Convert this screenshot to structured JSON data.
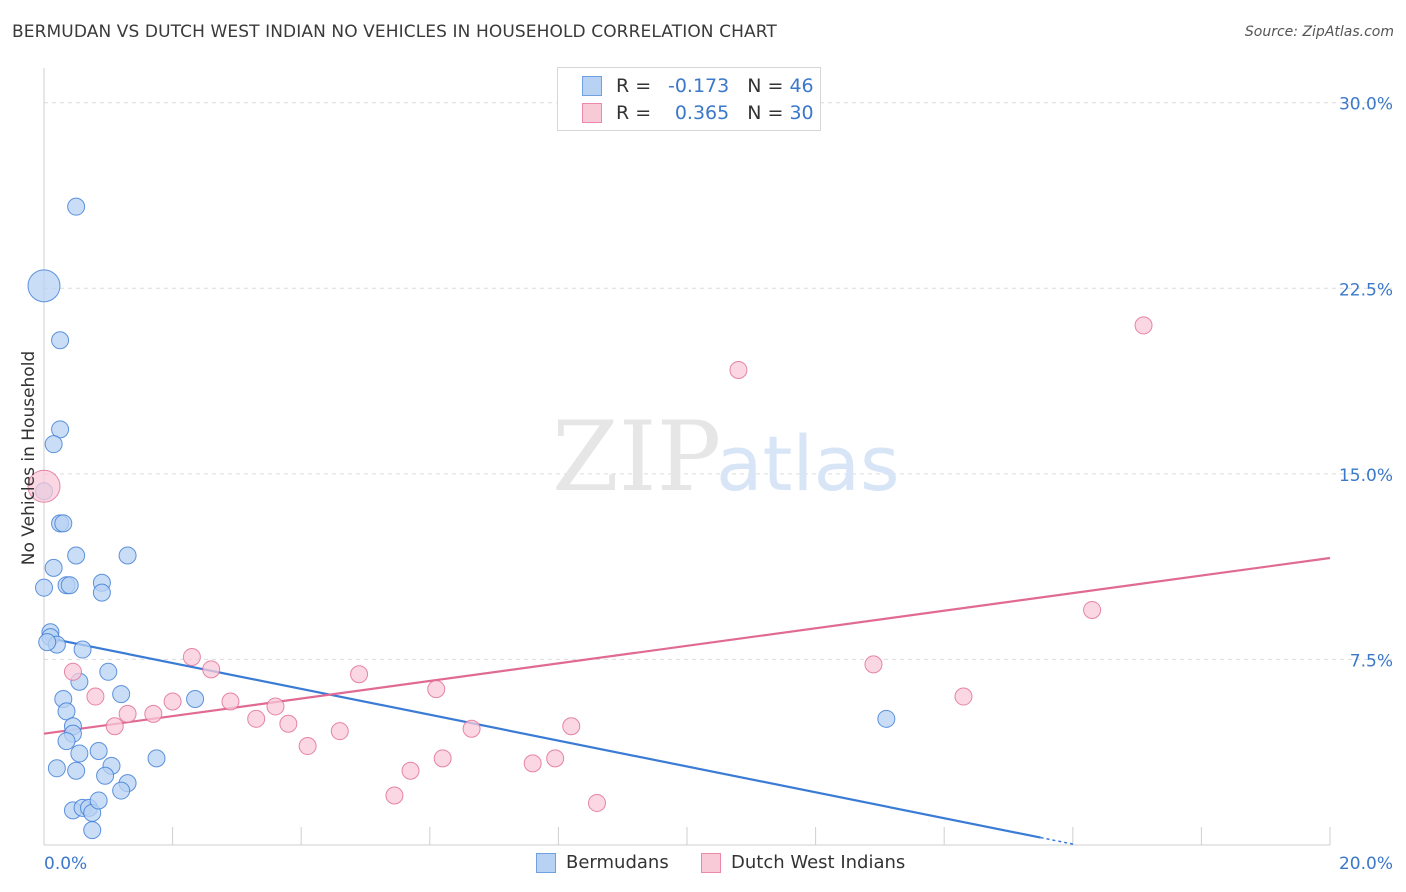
{
  "title": "BERMUDAN VS DUTCH WEST INDIAN NO VEHICLES IN HOUSEHOLD CORRELATION CHART",
  "source": "Source: ZipAtlas.com",
  "watermark": {
    "zip": "ZIP",
    "atlas": "atlas"
  },
  "legend": {
    "r_label": "R =",
    "n_label": "N =",
    "rows": [
      {
        "r": "-0.173",
        "n": "46",
        "color": "#6fa0e0",
        "fill": "#b8d2f3"
      },
      {
        "r": "0.365",
        "n": "30",
        "color": "#eb8aa8",
        "fill": "#f8cad8"
      }
    ]
  },
  "bottom_legend": [
    {
      "label": "Bermudans",
      "color": "#6fa0e0",
      "fill": "#b8d2f3"
    },
    {
      "label": "Dutch West Indians",
      "color": "#eb8aa8",
      "fill": "#f8cad8"
    }
  ],
  "chart_data": {
    "type": "scatter",
    "title": "BERMUDAN VS DUTCH WEST INDIAN NO VEHICLES IN HOUSEHOLD CORRELATION CHART",
    "xlabel": "",
    "ylabel": "No Vehicles in Household",
    "xlim": [
      0,
      20
    ],
    "ylim": [
      0,
      31
    ],
    "x_tick_labels": [
      "0.0%",
      "20.0%"
    ],
    "y_ticks": [
      7.5,
      15.0,
      22.5,
      30.0
    ],
    "y_tick_labels": [
      "7.5%",
      "15.0%",
      "22.5%",
      "30.0%"
    ],
    "grid": "horizontal dashed",
    "legend_position": "top-center",
    "series": [
      {
        "name": "Bermudans",
        "color": "#3a7bd5",
        "fill": "#b8d2f3",
        "trend": {
          "x": [
            0.0,
            15.5
          ],
          "y": [
            8.4,
            0.3
          ]
        },
        "points": [
          [
            0.5,
            25.8
          ],
          [
            0.0,
            22.6
          ],
          [
            0.25,
            20.4
          ],
          [
            0.25,
            16.8
          ],
          [
            0.15,
            16.2
          ],
          [
            0.0,
            14.3
          ],
          [
            0.25,
            13.0
          ],
          [
            0.3,
            13.0
          ],
          [
            0.15,
            11.2
          ],
          [
            0.5,
            11.7
          ],
          [
            1.3,
            11.7
          ],
          [
            0.0,
            10.4
          ],
          [
            0.35,
            10.5
          ],
          [
            0.4,
            10.5
          ],
          [
            0.9,
            10.6
          ],
          [
            0.9,
            10.2
          ],
          [
            0.1,
            8.6
          ],
          [
            0.1,
            8.4
          ],
          [
            0.2,
            8.1
          ],
          [
            0.6,
            7.9
          ],
          [
            1.0,
            7.0
          ],
          [
            0.55,
            6.6
          ],
          [
            1.2,
            6.1
          ],
          [
            0.3,
            5.9
          ],
          [
            2.35,
            5.9
          ],
          [
            0.35,
            5.4
          ],
          [
            0.45,
            4.8
          ],
          [
            0.45,
            4.5
          ],
          [
            0.35,
            4.2
          ],
          [
            0.55,
            3.7
          ],
          [
            0.85,
            3.8
          ],
          [
            1.75,
            3.5
          ],
          [
            0.2,
            3.1
          ],
          [
            0.5,
            3.0
          ],
          [
            1.05,
            3.2
          ],
          [
            0.95,
            2.8
          ],
          [
            1.3,
            2.5
          ],
          [
            1.2,
            2.2
          ],
          [
            0.45,
            1.4
          ],
          [
            0.6,
            1.5
          ],
          [
            0.7,
            1.5
          ],
          [
            0.75,
            1.3
          ],
          [
            0.85,
            1.8
          ],
          [
            0.75,
            0.6
          ],
          [
            0.05,
            8.2
          ],
          [
            13.1,
            5.1
          ]
        ]
      },
      {
        "name": "Dutch West Indians",
        "color": "#e06a94",
        "fill": "#f8cad8",
        "trend": {
          "x": [
            0.0,
            20.0
          ],
          "y": [
            4.5,
            11.6
          ]
        },
        "points": [
          [
            0.0,
            14.5
          ],
          [
            17.1,
            21.0
          ],
          [
            10.8,
            19.2
          ],
          [
            16.3,
            9.5
          ],
          [
            12.9,
            7.3
          ],
          [
            14.3,
            6.0
          ],
          [
            2.3,
            7.6
          ],
          [
            2.6,
            7.1
          ],
          [
            0.45,
            7.0
          ],
          [
            4.9,
            6.9
          ],
          [
            6.1,
            6.3
          ],
          [
            0.8,
            6.0
          ],
          [
            2.0,
            5.8
          ],
          [
            2.9,
            5.8
          ],
          [
            3.6,
            5.6
          ],
          [
            1.3,
            5.3
          ],
          [
            1.7,
            5.3
          ],
          [
            3.3,
            5.1
          ],
          [
            3.8,
            4.9
          ],
          [
            1.1,
            4.8
          ],
          [
            4.6,
            4.6
          ],
          [
            6.65,
            4.7
          ],
          [
            8.2,
            4.8
          ],
          [
            4.1,
            4.0
          ],
          [
            6.2,
            3.5
          ],
          [
            5.7,
            3.0
          ],
          [
            7.6,
            3.3
          ],
          [
            7.95,
            3.5
          ],
          [
            5.45,
            2.0
          ],
          [
            8.6,
            1.7
          ]
        ]
      }
    ]
  }
}
